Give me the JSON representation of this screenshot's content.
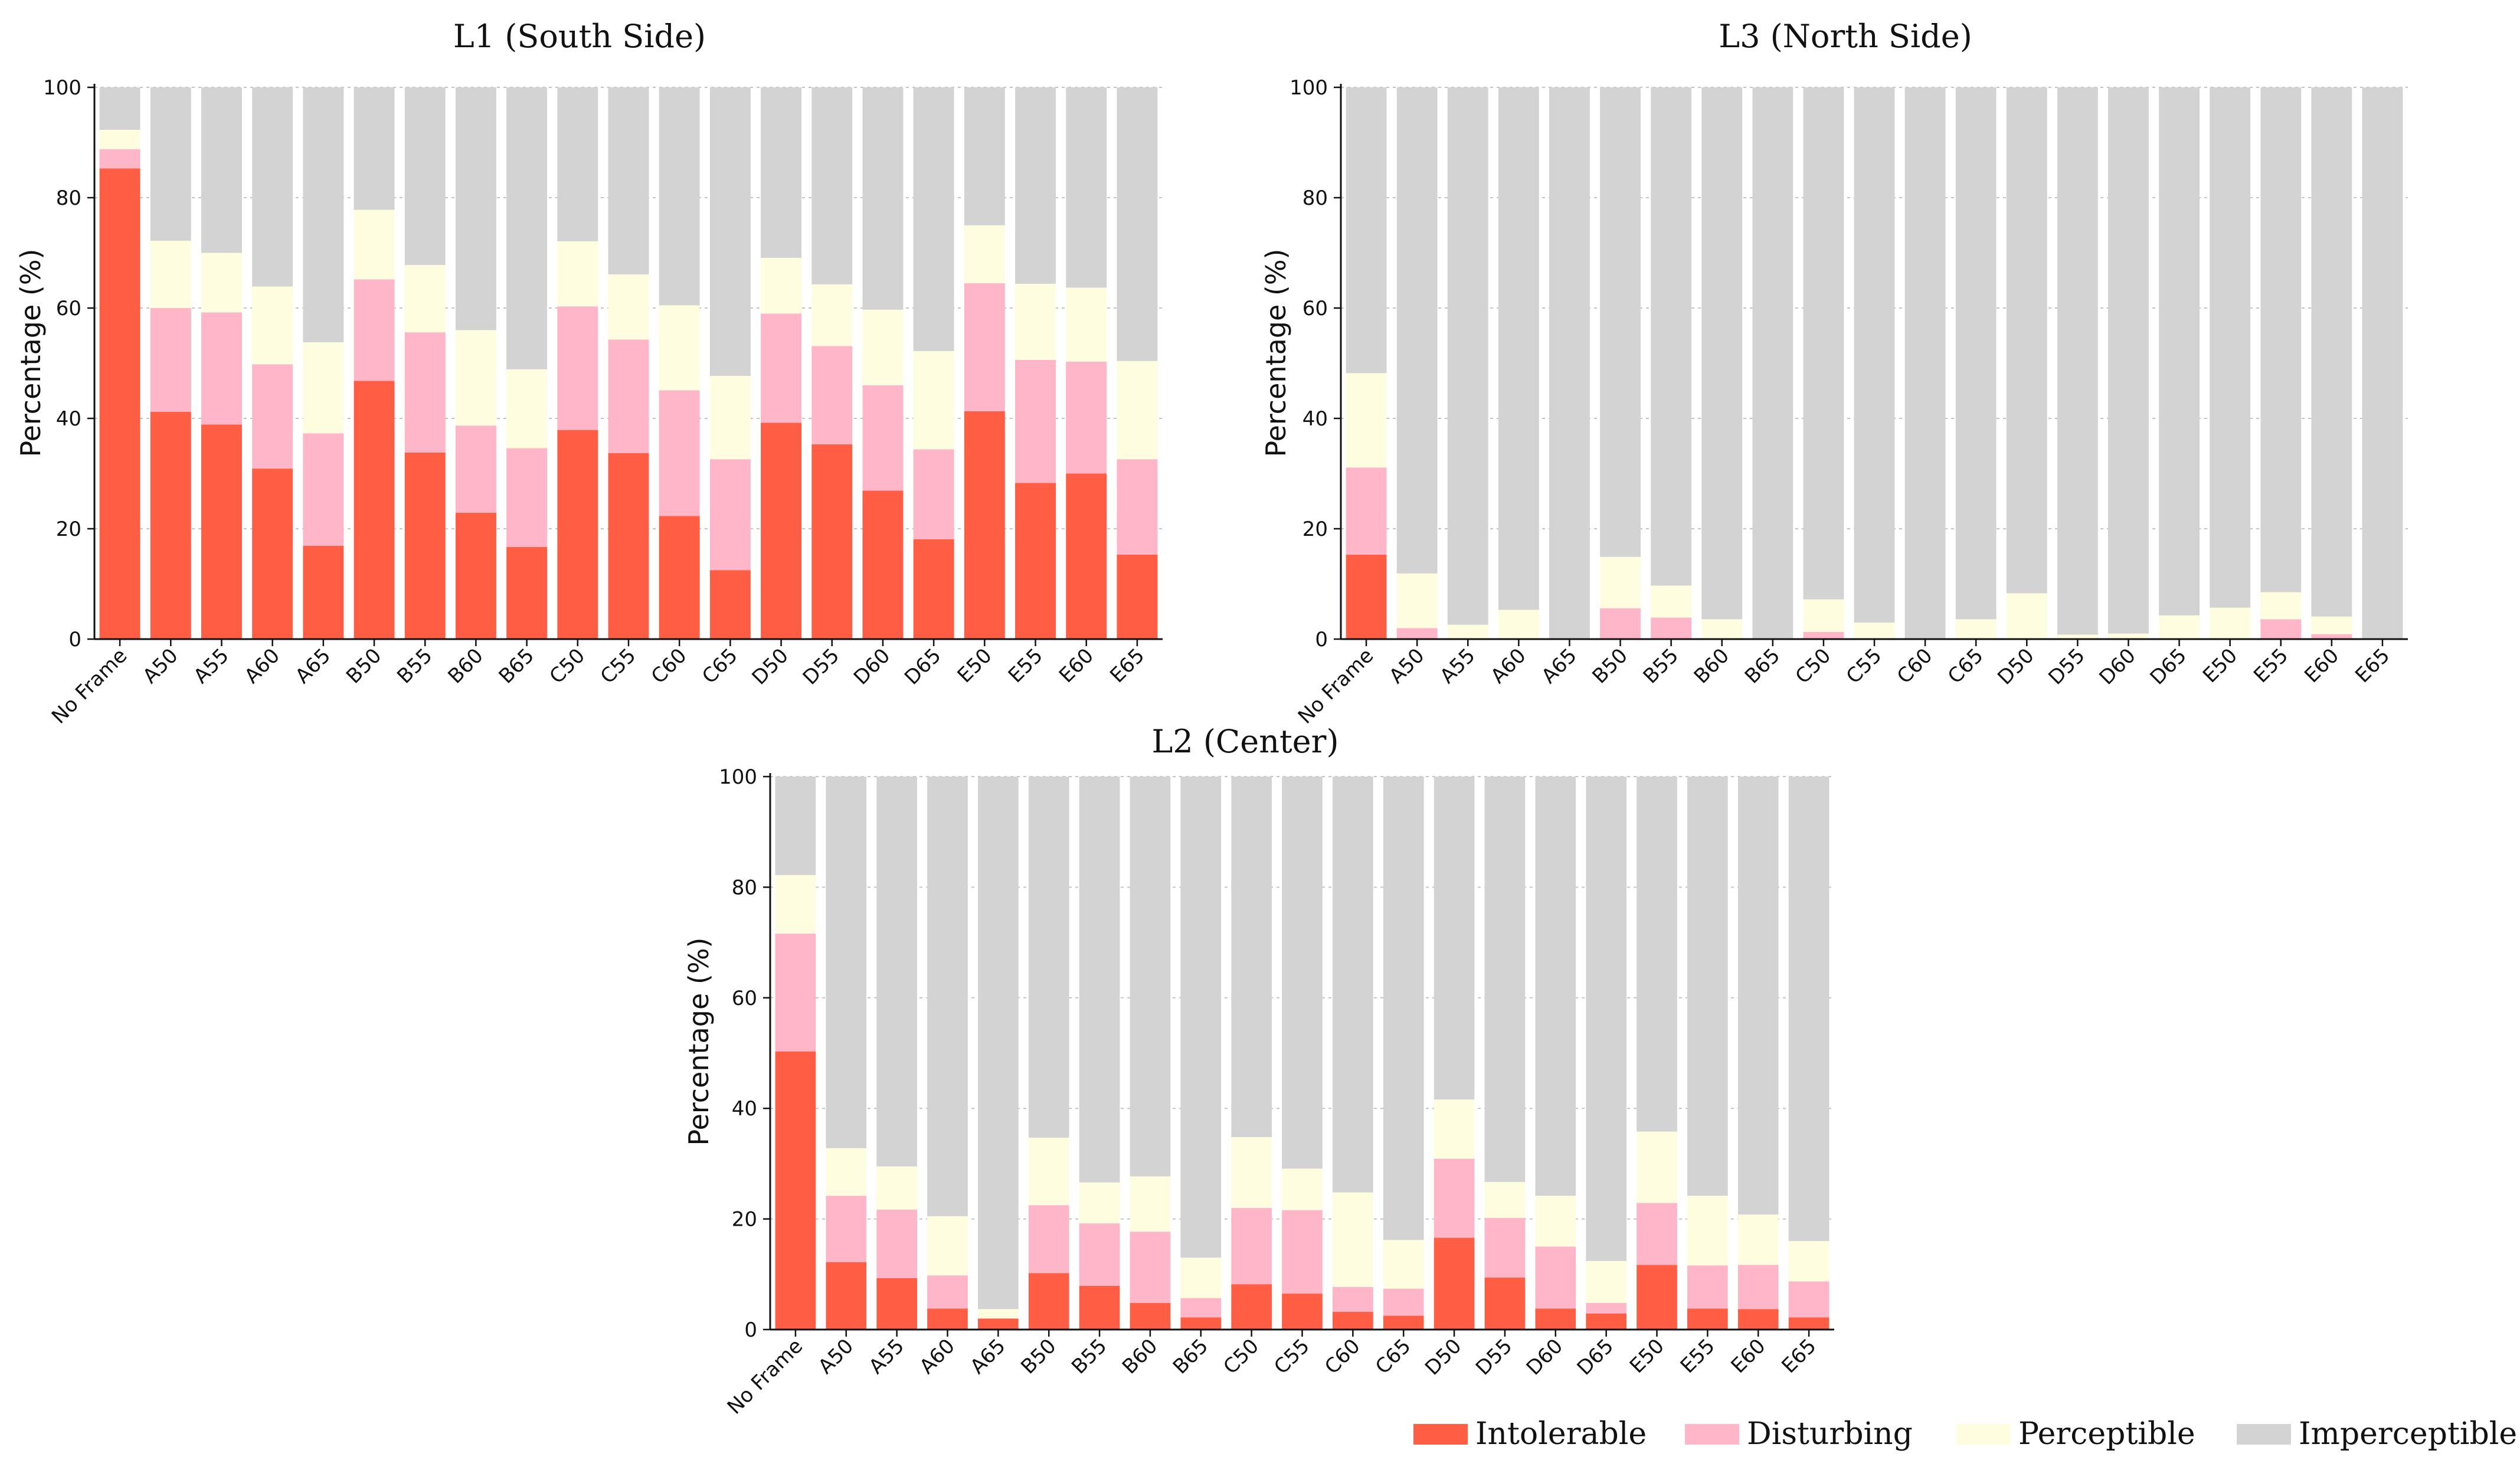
{
  "chart_data": [
    {
      "id": "L1",
      "type": "bar",
      "stacked": true,
      "title": "L1 (South Side)",
      "xlabel": "",
      "ylabel": "Percentage (%)",
      "ylim": [
        0,
        100
      ],
      "yticks": [
        0,
        20,
        40,
        60,
        80,
        100
      ],
      "grid": true,
      "categories": [
        "No Frame",
        "A50",
        "A55",
        "A60",
        "A65",
        "B50",
        "B55",
        "B60",
        "B65",
        "C50",
        "C55",
        "C60",
        "C65",
        "D50",
        "D55",
        "D60",
        "D65",
        "E50",
        "E55",
        "E60",
        "E65"
      ],
      "series": [
        {
          "name": "Intolerable",
          "values": [
            85.3,
            41.2,
            38.9,
            30.9,
            16.9,
            46.8,
            33.8,
            22.9,
            16.7,
            37.9,
            33.7,
            22.3,
            12.5,
            39.2,
            35.3,
            26.9,
            18.1,
            41.3,
            28.3,
            30.0,
            15.3
          ]
        },
        {
          "name": "Disturbing",
          "values": [
            3.5,
            18.8,
            20.3,
            18.9,
            20.4,
            18.4,
            21.8,
            15.8,
            17.9,
            22.4,
            20.6,
            22.8,
            20.1,
            19.8,
            17.8,
            19.1,
            16.3,
            23.2,
            22.3,
            20.3,
            17.3
          ]
        },
        {
          "name": "Perceptible",
          "values": [
            3.5,
            12.2,
            10.8,
            14.1,
            16.5,
            12.6,
            12.2,
            17.3,
            14.3,
            11.8,
            11.8,
            15.4,
            15.1,
            10.1,
            11.2,
            13.7,
            17.8,
            10.5,
            13.8,
            13.4,
            17.8
          ]
        },
        {
          "name": "Imperceptible",
          "values": [
            7.7,
            27.8,
            30.0,
            36.1,
            46.2,
            22.2,
            32.2,
            44.0,
            51.1,
            27.9,
            33.9,
            39.5,
            52.3,
            30.9,
            35.7,
            40.3,
            47.8,
            25.0,
            35.6,
            36.3,
            49.6
          ]
        }
      ]
    },
    {
      "id": "L3",
      "type": "bar",
      "stacked": true,
      "title": "L3 (North Side)",
      "xlabel": "",
      "ylabel": "Percentage (%)",
      "ylim": [
        0,
        100
      ],
      "yticks": [
        0,
        20,
        40,
        60,
        80,
        100
      ],
      "grid": true,
      "categories": [
        "No Frame",
        "A50",
        "A55",
        "A60",
        "A65",
        "B50",
        "B55",
        "B60",
        "B65",
        "C50",
        "C55",
        "C60",
        "C65",
        "D50",
        "D55",
        "D60",
        "D65",
        "E50",
        "E55",
        "E60",
        "E65"
      ],
      "series": [
        {
          "name": "Intolerable",
          "values": [
            15.3,
            0,
            0,
            0,
            0,
            0,
            0,
            0,
            0,
            0,
            0,
            0,
            0,
            0,
            0,
            0,
            0,
            0,
            0,
            0,
            0
          ]
        },
        {
          "name": "Disturbing",
          "values": [
            15.8,
            2.0,
            0,
            0,
            0,
            5.6,
            3.9,
            0,
            0,
            1.3,
            0,
            0,
            0,
            0,
            0,
            0,
            0,
            0,
            3.6,
            0.9,
            0
          ]
        },
        {
          "name": "Perceptible",
          "values": [
            17.1,
            9.9,
            2.6,
            5.3,
            0,
            9.3,
            5.8,
            3.6,
            0,
            5.9,
            3.0,
            0,
            3.6,
            8.3,
            0.8,
            1.0,
            4.3,
            5.7,
            4.9,
            3.2,
            0
          ]
        },
        {
          "name": "Imperceptible",
          "values": [
            51.8,
            88.1,
            97.4,
            94.7,
            100,
            85.1,
            90.3,
            96.4,
            100,
            92.8,
            97.0,
            100,
            96.4,
            91.7,
            99.2,
            99.0,
            95.7,
            94.3,
            91.5,
            95.9,
            100
          ]
        }
      ]
    },
    {
      "id": "L2",
      "type": "bar",
      "stacked": true,
      "title": "L2 (Center)",
      "xlabel": "",
      "ylabel": "Percentage (%)",
      "ylim": [
        0,
        100
      ],
      "yticks": [
        0,
        20,
        40,
        60,
        80,
        100
      ],
      "grid": true,
      "categories": [
        "No Frame",
        "A50",
        "A55",
        "A60",
        "A65",
        "B50",
        "B55",
        "B60",
        "B65",
        "C50",
        "C55",
        "C60",
        "C65",
        "D50",
        "D55",
        "D60",
        "D65",
        "E50",
        "E55",
        "E60",
        "E65"
      ],
      "series": [
        {
          "name": "Intolerable",
          "values": [
            50.3,
            12.2,
            9.3,
            3.8,
            2.0,
            10.2,
            7.9,
            4.8,
            2.2,
            8.2,
            6.5,
            3.2,
            2.5,
            16.6,
            9.4,
            3.8,
            2.9,
            11.7,
            3.8,
            3.7,
            2.2
          ]
        },
        {
          "name": "Disturbing",
          "values": [
            21.3,
            12.0,
            12.4,
            6.0,
            0,
            12.3,
            11.3,
            12.9,
            3.5,
            13.8,
            15.1,
            4.5,
            4.9,
            14.3,
            10.8,
            11.2,
            1.9,
            11.2,
            7.8,
            8.0,
            6.5
          ]
        },
        {
          "name": "Perceptible",
          "values": [
            10.6,
            8.6,
            7.8,
            10.7,
            1.7,
            12.2,
            7.4,
            10.0,
            7.3,
            12.8,
            7.5,
            17.1,
            8.8,
            10.7,
            6.5,
            9.2,
            7.6,
            12.9,
            12.6,
            9.1,
            7.3
          ]
        },
        {
          "name": "Imperceptible",
          "values": [
            17.8,
            67.2,
            70.5,
            79.5,
            96.3,
            65.3,
            73.4,
            72.3,
            87.0,
            65.2,
            70.9,
            75.2,
            83.8,
            58.4,
            73.3,
            75.8,
            87.6,
            64.2,
            75.8,
            79.2,
            84.0
          ]
        }
      ]
    }
  ],
  "legend": {
    "position": "bottom-right",
    "items": [
      {
        "name": "Intolerable",
        "color": "#ff5e45"
      },
      {
        "name": "Disturbing",
        "color": "#ffb6c8"
      },
      {
        "name": "Perceptible",
        "color": "#fffde0"
      },
      {
        "name": "Imperceptible",
        "color": "#d3d3d3"
      }
    ]
  }
}
